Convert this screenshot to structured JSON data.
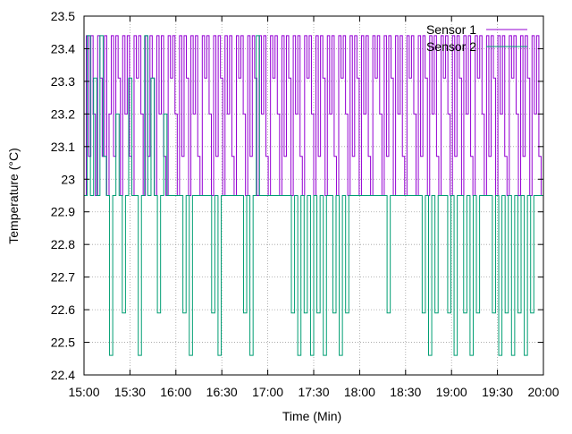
{
  "chart_data": {
    "type": "line",
    "xlabel": "Time (Min)",
    "ylabel": "Temperature (°C)",
    "xlim": [
      "15:00",
      "20:00"
    ],
    "ylim": [
      22.4,
      23.5
    ],
    "grid": true,
    "legend_position": "top-right",
    "x_ticks": [
      "15:00",
      "15:30",
      "16:00",
      "16:30",
      "17:00",
      "17:30",
      "18:00",
      "18:30",
      "19:00",
      "19:30",
      "20:00"
    ],
    "y_ticks": [
      "22.4",
      "22.5",
      "22.6",
      "22.7",
      "22.8",
      "22.9",
      "23",
      "23.1",
      "23.2",
      "23.3",
      "23.4",
      "23.5"
    ],
    "series": [
      {
        "name": "Sensor 1",
        "color": "#9400d3",
        "step": true,
        "time_start": "15:00",
        "time_end": "20:00",
        "values": [
          22.95,
          23.44,
          23.07,
          23.44,
          23.2,
          22.95,
          23.44,
          23.31,
          23.07,
          23.44,
          22.95,
          23.2,
          23.44,
          23.07,
          23.44,
          23.31,
          22.95,
          23.44,
          23.2,
          23.44,
          23.07,
          22.95,
          23.44,
          23.31,
          23.44,
          23.2,
          22.95,
          23.44,
          23.07,
          23.44,
          23.31,
          22.95,
          23.44,
          23.2,
          23.44,
          23.07,
          22.95,
          23.44,
          23.31,
          23.44,
          23.2,
          22.95,
          23.44,
          23.07,
          23.44,
          23.31,
          22.95,
          23.44,
          23.2,
          23.44,
          23.07,
          22.95,
          23.44,
          23.31,
          23.44,
          23.2,
          22.95,
          23.44,
          23.07,
          23.44,
          23.31,
          22.95,
          23.44,
          23.2,
          23.44,
          23.07,
          22.95,
          23.44,
          23.31,
          23.44,
          23.2,
          22.95,
          23.44,
          23.07,
          23.44,
          23.31,
          22.95,
          23.44,
          23.2,
          23.44,
          23.07,
          22.95,
          23.44,
          23.31,
          23.44,
          23.2,
          22.95,
          23.44,
          23.07,
          23.44,
          23.31,
          22.95,
          23.44,
          23.2,
          23.44,
          23.07,
          22.95,
          23.44,
          23.31,
          23.44,
          23.2,
          22.95,
          23.44,
          23.07,
          23.44,
          23.31,
          22.95,
          23.44,
          23.2,
          23.44,
          23.07,
          22.95,
          23.44,
          23.31,
          23.44,
          23.2,
          22.95,
          23.44,
          23.07,
          23.44,
          23.31,
          22.95,
          23.44,
          23.2,
          23.44,
          23.07,
          22.95,
          23.44,
          23.31,
          23.44,
          23.2,
          22.95,
          23.44,
          23.07,
          23.44,
          23.31,
          22.95,
          23.44,
          23.2,
          23.44,
          23.07,
          22.95,
          23.44,
          23.31,
          23.44,
          23.2,
          22.95,
          23.44,
          23.07,
          23.44,
          23.31,
          22.95,
          23.44,
          23.2,
          23.44,
          23.07,
          22.95,
          23.44,
          23.31,
          23.44,
          23.2,
          22.95,
          23.44,
          23.07,
          23.44,
          23.31,
          22.95,
          23.44,
          23.2,
          23.44,
          23.07,
          22.95,
          23.44,
          23.31,
          23.44,
          23.2,
          22.95,
          23.44,
          23.07,
          23.44,
          23.31,
          22.95,
          23.44,
          23.2,
          23.44,
          23.07,
          22.95,
          23.44,
          23.31,
          23.44,
          23.2,
          22.95,
          23.44,
          23.07,
          23.44,
          23.31,
          22.95,
          23.44,
          23.2,
          23.44,
          23.07,
          22.95
        ]
      },
      {
        "name": "Sensor 2",
        "color": "#009e73",
        "step": true,
        "time_start": "15:00",
        "time_end": "20:00",
        "values": [
          22.95,
          23.44,
          22.95,
          23.31,
          22.95,
          23.44,
          23.07,
          22.95,
          22.46,
          22.95,
          23.2,
          22.95,
          22.59,
          22.95,
          23.31,
          22.95,
          22.95,
          22.46,
          22.95,
          23.44,
          22.95,
          23.31,
          22.95,
          22.59,
          22.95,
          23.2,
          22.95,
          22.95,
          22.95,
          22.95,
          22.95,
          22.59,
          22.95,
          22.46,
          22.95,
          22.95,
          22.95,
          22.95,
          22.95,
          22.95,
          22.59,
          22.95,
          22.46,
          22.95,
          22.95,
          22.95,
          22.95,
          22.95,
          22.95,
          22.95,
          22.59,
          22.95,
          22.46,
          22.95,
          23.44,
          22.95,
          22.95,
          22.95,
          22.95,
          22.95,
          22.95,
          22.95,
          22.95,
          22.95,
          22.95,
          22.59,
          22.95,
          22.46,
          22.95,
          22.59,
          22.95,
          22.46,
          22.95,
          22.59,
          22.95,
          22.46,
          22.95,
          22.95,
          22.59,
          22.95,
          22.46,
          22.95,
          22.59,
          22.95,
          22.95,
          22.95,
          22.95,
          22.95,
          22.95,
          22.95,
          22.95,
          22.95,
          22.95,
          22.95,
          22.95,
          22.59,
          22.95,
          22.95,
          22.95,
          22.95,
          22.95,
          22.95,
          22.95,
          22.95,
          22.95,
          22.95,
          22.59,
          22.95,
          22.46,
          22.95,
          22.59,
          22.95,
          22.95,
          22.95,
          22.59,
          22.95,
          22.46,
          22.95,
          22.95,
          22.59,
          22.95,
          22.46,
          22.95,
          22.59,
          22.95,
          22.95,
          22.95,
          22.95,
          22.59,
          22.95,
          22.46,
          22.95,
          22.59,
          22.95,
          22.46,
          22.95,
          22.59,
          22.95,
          22.46,
          22.95,
          22.59,
          22.95,
          22.95,
          22.95
        ]
      }
    ]
  }
}
